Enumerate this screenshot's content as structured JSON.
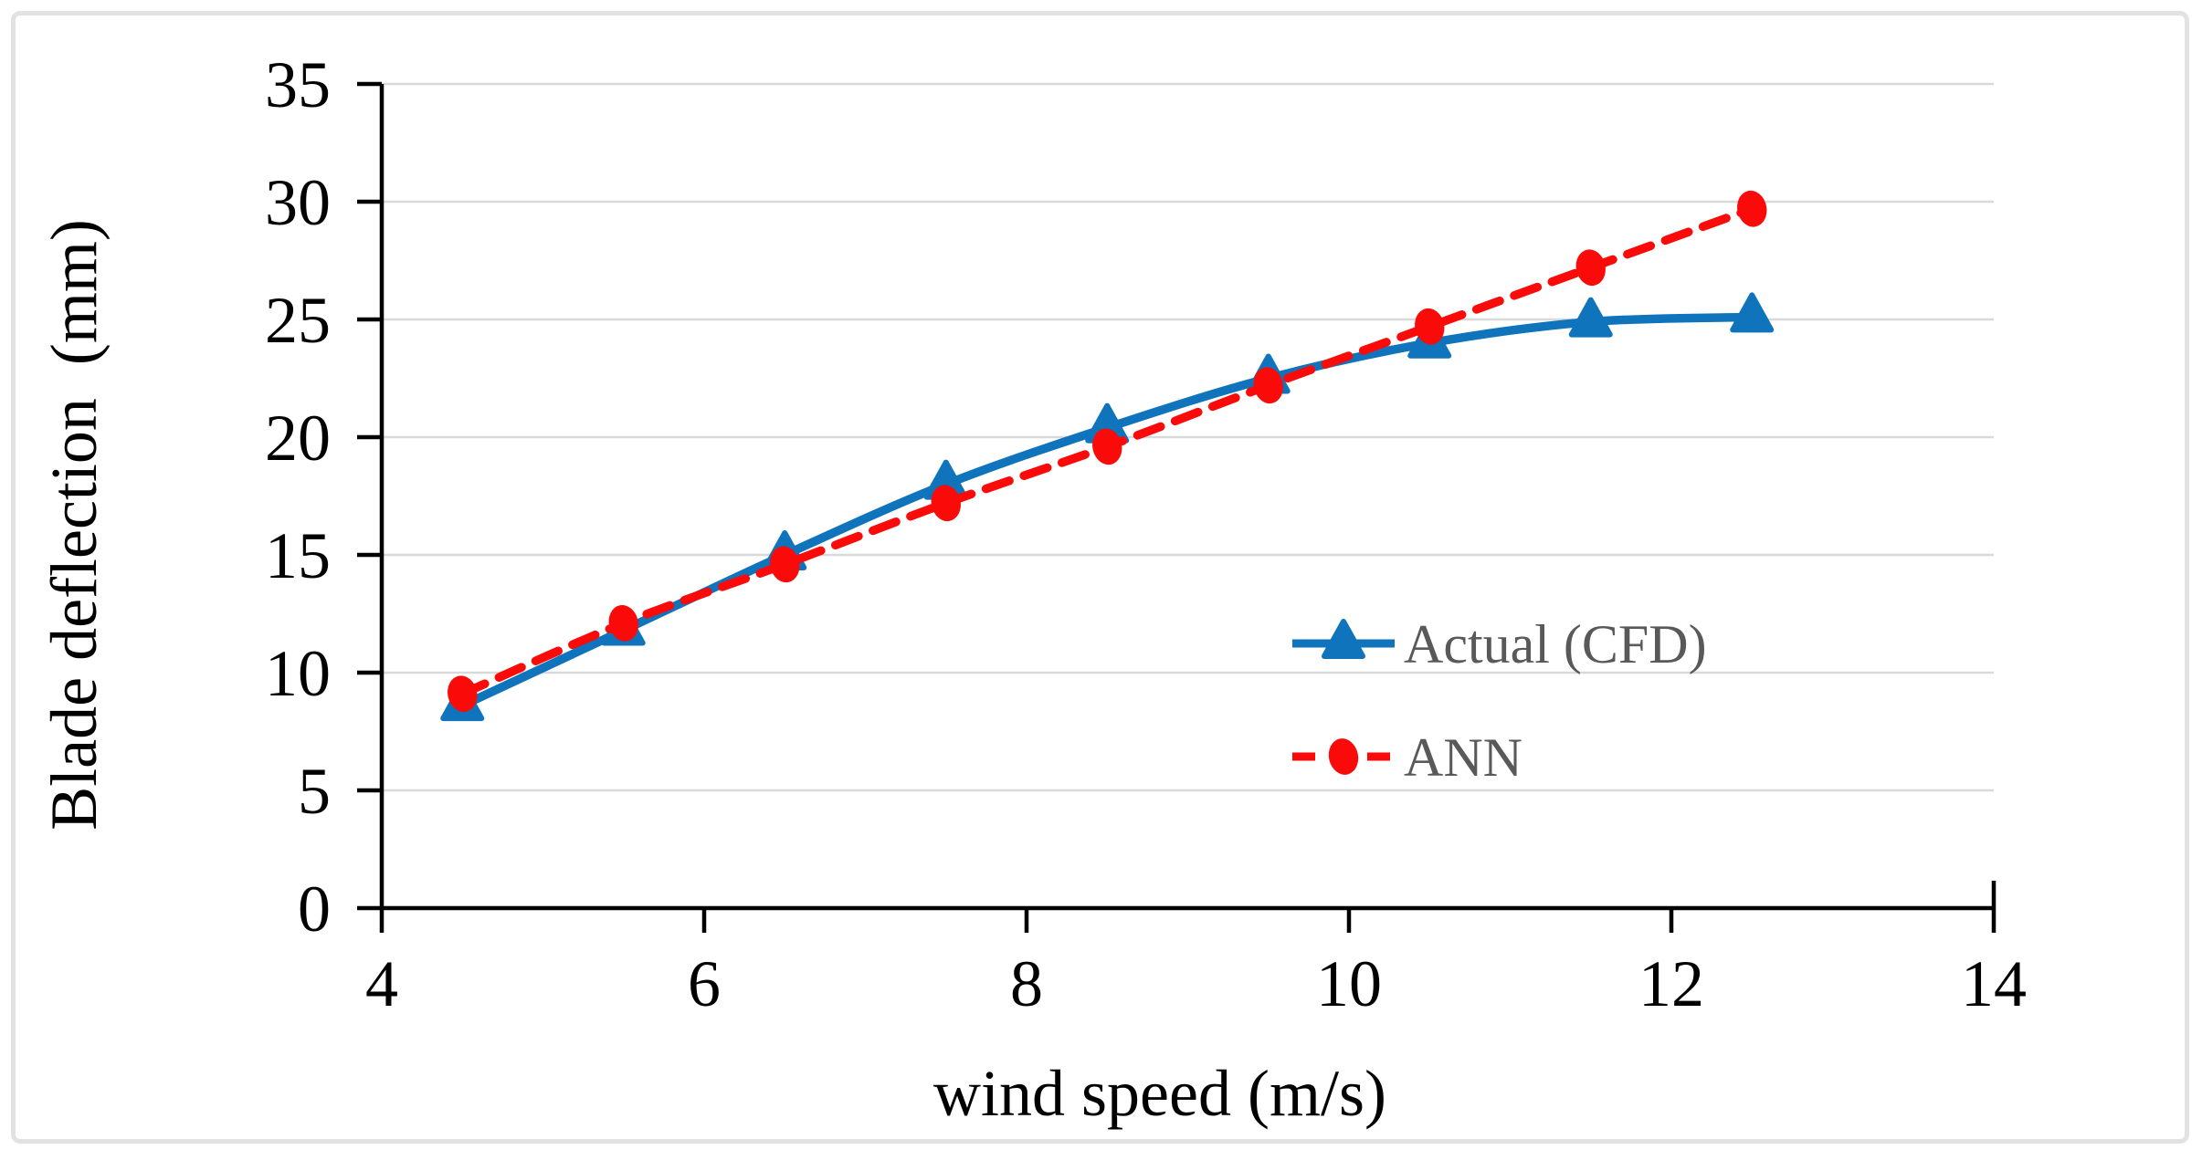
{
  "figure": {
    "background": "#ffffff",
    "border_color": "#e2e2e2"
  },
  "chart_data": {
    "type": "line",
    "title": "",
    "xlabel": "wind speed (m/s)",
    "ylabel": "Blade deflection  (mm)",
    "x": [
      4.5,
      5.5,
      6.5,
      7.5,
      8.5,
      9.5,
      10.5,
      11.5,
      12.5
    ],
    "series": [
      {
        "name": "Actual (CFD)",
        "color": "#0f74bc",
        "line_style": "solid",
        "marker": "triangle",
        "values": [
          8.6,
          11.8,
          15.0,
          18.0,
          20.4,
          22.5,
          24.0,
          24.9,
          25.1
        ]
      },
      {
        "name": "ANN",
        "color": "#fb0a0a",
        "line_style": "dashed",
        "marker": "circle",
        "values": [
          9.1,
          12.1,
          14.6,
          17.2,
          19.6,
          22.2,
          24.7,
          27.2,
          29.7
        ]
      }
    ],
    "xlim": [
      4,
      14
    ],
    "ylim": [
      0,
      35
    ],
    "xticks": [
      4,
      6,
      8,
      10,
      12,
      14
    ],
    "yticks": [
      0,
      5,
      10,
      15,
      20,
      25,
      30,
      35
    ],
    "grid": true,
    "legend_position": "inside-right",
    "colors": {
      "grid": "#d9d9d9",
      "axis": "#000000",
      "tick_text": "#000000",
      "legend_text": "#595959"
    }
  }
}
